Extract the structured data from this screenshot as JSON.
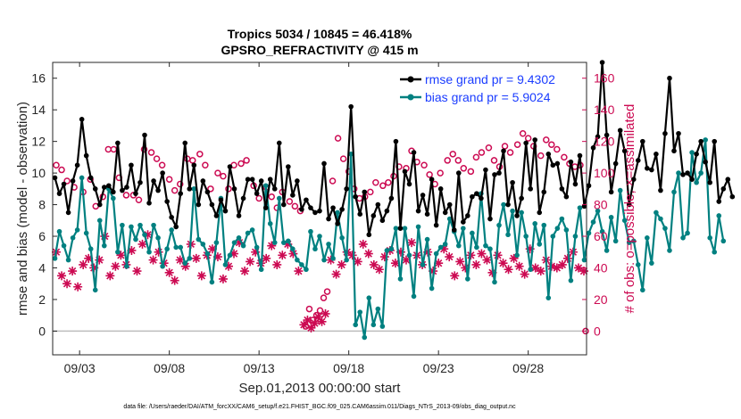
{
  "chart_data": {
    "type": "line",
    "title_line1": "Tropics 5034 / 10845 = 46.418%",
    "title_line2": "GPSRO_REFRACTIVITY @ 415 m",
    "xlabel": "Sep.01,2013 00:00:00 start",
    "ylabel": "rmse and bias (model - observation)",
    "ylabel_right": "# of obs: o=possible; ×=assimilated",
    "footer": "data file: /Users/raeder/DAI/ATM_forcXX/CAM6_setup/f.e21.FHIST_BGC.f09_025.CAM6assim.011/Diags_NTrS_2013-09/obs_diag_output.nc",
    "x_ticks": [
      {
        "day": 3,
        "label": "09/03"
      },
      {
        "day": 8,
        "label": "09/08"
      },
      {
        "day": 13,
        "label": "09/13"
      },
      {
        "day": 18,
        "label": "09/18"
      },
      {
        "day": 23,
        "label": "09/23"
      },
      {
        "day": 28,
        "label": "09/28"
      }
    ],
    "xlim": [
      1.5,
      31.25
    ],
    "ylim": [
      -1.5,
      17
    ],
    "yticks": [
      0,
      2,
      4,
      6,
      8,
      10,
      12,
      14,
      16
    ],
    "ylim_right": [
      -15,
      170
    ],
    "yticks_right": [
      0,
      20,
      40,
      60,
      80,
      100,
      120,
      140,
      160
    ],
    "x_start": 1.625,
    "x_step": 0.25,
    "colors": {
      "rmse": "#000000",
      "bias": "#008080",
      "obs": "#cc0a52",
      "zero": "#bdbdbd"
    },
    "series": [
      {
        "name": "rmse grand pr = 9.4302",
        "color": "#000000",
        "values": [
          9.7,
          8.7,
          9.3,
          7.5,
          9.5,
          10.5,
          13.4,
          11.1,
          9.7,
          9.0,
          8.0,
          9.1,
          9.2,
          8.8,
          11.9,
          8.9,
          9.1,
          10.5,
          8.7,
          9.4,
          12.4,
          8.1,
          9.5,
          8.9,
          10.0,
          8.2,
          7.2,
          6.6,
          8.7,
          11.9,
          9.0,
          10.5,
          8.0,
          9.5,
          8.8,
          8.0,
          7.3,
          8.3,
          7.6,
          10.4,
          9.0,
          7.3,
          8.4,
          9.6,
          9.6,
          8.7,
          9.5,
          7.8,
          9.6,
          9.0,
          11.9,
          8.0,
          10.4,
          8.6,
          9.5,
          7.7,
          8.3,
          7.8,
          7.5,
          7.6,
          10.6,
          7.1,
          7.8,
          6.8,
          7.7,
          9.0,
          14.2,
          8.5,
          7.4,
          8.8,
          6.1,
          7.3,
          8.0,
          7.0,
          7.6,
          8.4,
          12.0,
          6.5,
          10.1,
          9.3,
          11.3,
          7.6,
          8.6,
          7.4,
          9.6,
          6.7,
          9.0,
          7.5,
          8.0,
          6.4,
          10.0,
          6.9,
          7.3,
          8.5,
          8.7,
          8.4,
          10.2,
          7.1,
          9.9,
          10.0,
          11.4,
          8.0,
          9.4,
          7.3,
          8.4,
          11.9,
          9.0,
          12.1,
          7.5,
          8.8,
          11.2,
          10.5,
          10.6,
          9.0,
          8.5,
          10.7,
          9.3,
          11.1,
          7.9,
          9.2,
          11.6,
          12.3,
          17.0,
          12.4,
          8.8,
          10.6,
          12.7,
          11.4,
          8.0,
          9.6,
          10.8,
          12.0,
          10.3,
          10.2,
          11.2,
          8.9,
          12.5,
          16.0,
          11.4,
          12.5,
          9.9,
          10.0,
          9.6,
          11.2,
          12.0,
          10.7,
          9.4,
          12.0,
          8.2,
          9.0,
          9.6,
          8.5
        ]
      },
      {
        "name": "bias grand pr = 5.9024",
        "color": "#008080",
        "values": [
          4.6,
          6.3,
          5.4,
          4.5,
          5.9,
          6.4,
          9.7,
          6.2,
          5.2,
          2.6,
          7.0,
          5.4,
          9.0,
          8.4,
          5.0,
          6.7,
          4.1,
          6.6,
          5.8,
          6.7,
          6.1,
          5.0,
          6.7,
          5.9,
          4.1,
          5.2,
          6.4,
          5.3,
          5.3,
          4.3,
          4.6,
          9.0,
          5.8,
          5.5,
          4.9,
          3.1,
          5.6,
          8.4,
          4.2,
          4.8,
          5.6,
          5.9,
          5.4,
          6.2,
          6.4,
          5.3,
          3.9,
          9.2,
          6.8,
          5.6,
          8.4,
          5.6,
          5.7,
          5.2,
          4.5,
          4.2,
          3.9,
          6.3,
          5.2,
          6.0,
          4.5,
          5.5,
          4.6,
          7.5,
          5.9,
          4.5,
          11.2,
          0.4,
          1.2,
          -0.4,
          2.1,
          0.4,
          1.4,
          0.3,
          5.1,
          5.2,
          6.5,
          3.3,
          6.5,
          4.8,
          2.2,
          6.6,
          4.2,
          5.8,
          2.7,
          4.9,
          5.3,
          5.5,
          7.1,
          6.3,
          5.4,
          6.5,
          3.3,
          6.2,
          5.3,
          8.7,
          5.4,
          5.2,
          3.1,
          6.7,
          8.0,
          6.1,
          7.6,
          4.8,
          7.5,
          6.0,
          3.9,
          6.8,
          5.5,
          6.7,
          2.1,
          6.0,
          6.5,
          7.1,
          6.4,
          3.2,
          6.0,
          7.8,
          4.5,
          6.2,
          6.9,
          7.6,
          6.3,
          5.1,
          7.2,
          5.7,
          8.9,
          7.0,
          5.6,
          5.7,
          4.2,
          2.6,
          5.9,
          4.3,
          7.5,
          7.1,
          6.5,
          5.1,
          8.8,
          10.0,
          5.9,
          6.2,
          11.3,
          9.4,
          10.0,
          12.1,
          5.9,
          5.0,
          7.3,
          5.7
        ]
      }
    ],
    "obs_possible": [
      {
        "day": 1.7,
        "value": 105
      },
      {
        "day": 2.0,
        "value": 102
      },
      {
        "day": 2.3,
        "value": 95
      },
      {
        "day": 2.7,
        "value": 91
      },
      {
        "day": 3.2,
        "value": 88
      },
      {
        "day": 3.6,
        "value": 96
      },
      {
        "day": 3.9,
        "value": 79
      },
      {
        "day": 4.3,
        "value": 85
      },
      {
        "day": 4.6,
        "value": 115
      },
      {
        "day": 4.9,
        "value": 115
      },
      {
        "day": 5.2,
        "value": 97
      },
      {
        "day": 5.6,
        "value": 86
      },
      {
        "day": 6.0,
        "value": 86
      },
      {
        "day": 6.3,
        "value": 83
      },
      {
        "day": 6.6,
        "value": 115
      },
      {
        "day": 7.0,
        "value": 113
      },
      {
        "day": 7.3,
        "value": 109
      },
      {
        "day": 7.6,
        "value": 105
      },
      {
        "day": 8.0,
        "value": 96
      },
      {
        "day": 8.3,
        "value": 89
      },
      {
        "day": 8.6,
        "value": 93
      },
      {
        "day": 9.0,
        "value": 109
      },
      {
        "day": 9.3,
        "value": 108
      },
      {
        "day": 9.7,
        "value": 112
      },
      {
        "day": 10.0,
        "value": 105
      },
      {
        "day": 10.3,
        "value": 90
      },
      {
        "day": 10.7,
        "value": 100
      },
      {
        "day": 11.0,
        "value": 98
      },
      {
        "day": 11.3,
        "value": 90
      },
      {
        "day": 11.6,
        "value": 105
      },
      {
        "day": 12.0,
        "value": 106
      },
      {
        "day": 12.3,
        "value": 108
      },
      {
        "day": 12.7,
        "value": 92
      },
      {
        "day": 13.0,
        "value": 84
      },
      {
        "day": 13.4,
        "value": 91
      },
      {
        "day": 13.7,
        "value": 85
      },
      {
        "day": 14.0,
        "value": 78
      },
      {
        "day": 14.3,
        "value": 88
      },
      {
        "day": 14.7,
        "value": 82
      },
      {
        "day": 15.0,
        "value": 79
      },
      {
        "day": 15.3,
        "value": 76
      },
      {
        "day": 15.6,
        "value": 3
      },
      {
        "day": 15.8,
        "value": 14
      },
      {
        "day": 16.0,
        "value": 7
      },
      {
        "day": 16.2,
        "value": 10
      },
      {
        "day": 16.4,
        "value": 13
      },
      {
        "day": 16.6,
        "value": 21
      },
      {
        "day": 16.8,
        "value": 25
      },
      {
        "day": 17.1,
        "value": 95
      },
      {
        "day": 17.4,
        "value": 122
      },
      {
        "day": 17.7,
        "value": 109
      },
      {
        "day": 18.0,
        "value": 101
      },
      {
        "day": 18.3,
        "value": 90
      },
      {
        "day": 18.6,
        "value": 84
      },
      {
        "day": 18.9,
        "value": 85
      },
      {
        "day": 19.2,
        "value": 88
      },
      {
        "day": 19.5,
        "value": 94
      },
      {
        "day": 19.9,
        "value": 92
      },
      {
        "day": 20.2,
        "value": 94
      },
      {
        "day": 20.5,
        "value": 98
      },
      {
        "day": 20.8,
        "value": 104
      },
      {
        "day": 21.2,
        "value": 103
      },
      {
        "day": 21.5,
        "value": 114
      },
      {
        "day": 21.8,
        "value": 107
      },
      {
        "day": 22.2,
        "value": 105
      },
      {
        "day": 22.5,
        "value": 99
      },
      {
        "day": 22.8,
        "value": 93
      },
      {
        "day": 23.1,
        "value": 100
      },
      {
        "day": 23.5,
        "value": 108
      },
      {
        "day": 23.8,
        "value": 112
      },
      {
        "day": 24.1,
        "value": 108
      },
      {
        "day": 24.4,
        "value": 103
      },
      {
        "day": 24.8,
        "value": 101
      },
      {
        "day": 25.1,
        "value": 110
      },
      {
        "day": 25.4,
        "value": 113
      },
      {
        "day": 25.8,
        "value": 116
      },
      {
        "day": 26.1,
        "value": 108
      },
      {
        "day": 26.4,
        "value": 104
      },
      {
        "day": 26.7,
        "value": 117
      },
      {
        "day": 27.0,
        "value": 113
      },
      {
        "day": 27.4,
        "value": 118
      },
      {
        "day": 27.7,
        "value": 125
      },
      {
        "day": 28.0,
        "value": 122
      },
      {
        "day": 28.3,
        "value": 117
      },
      {
        "day": 28.7,
        "value": 111
      },
      {
        "day": 29.0,
        "value": 121
      },
      {
        "day": 29.3,
        "value": 118
      },
      {
        "day": 29.6,
        "value": 115
      },
      {
        "day": 30.0,
        "value": 110
      },
      {
        "day": 30.3,
        "value": 106
      },
      {
        "day": 30.6,
        "value": 104
      },
      {
        "day": 30.9,
        "value": 105
      },
      {
        "day": 31.2,
        "value": 0
      }
    ],
    "obs_assimilated": [
      {
        "day": 1.7,
        "value": 50
      },
      {
        "day": 2.0,
        "value": 35
      },
      {
        "day": 2.3,
        "value": 30
      },
      {
        "day": 2.6,
        "value": 38
      },
      {
        "day": 2.9,
        "value": 28
      },
      {
        "day": 3.2,
        "value": 42
      },
      {
        "day": 3.5,
        "value": 46
      },
      {
        "day": 3.8,
        "value": 40
      },
      {
        "day": 4.1,
        "value": 45
      },
      {
        "day": 4.4,
        "value": 60
      },
      {
        "day": 4.7,
        "value": 35
      },
      {
        "day": 5.0,
        "value": 41
      },
      {
        "day": 5.3,
        "value": 48
      },
      {
        "day": 5.6,
        "value": 42
      },
      {
        "day": 5.9,
        "value": 51
      },
      {
        "day": 6.2,
        "value": 38
      },
      {
        "day": 6.5,
        "value": 55
      },
      {
        "day": 6.8,
        "value": 61
      },
      {
        "day": 7.1,
        "value": 45
      },
      {
        "day": 7.4,
        "value": 50
      },
      {
        "day": 7.7,
        "value": 43
      },
      {
        "day": 8.0,
        "value": 37
      },
      {
        "day": 8.3,
        "value": 32
      },
      {
        "day": 8.6,
        "value": 45
      },
      {
        "day": 8.9,
        "value": 41
      },
      {
        "day": 9.2,
        "value": 55
      },
      {
        "day": 9.5,
        "value": 46
      },
      {
        "day": 9.8,
        "value": 35
      },
      {
        "day": 10.1,
        "value": 48
      },
      {
        "day": 10.4,
        "value": 52
      },
      {
        "day": 10.7,
        "value": 47
      },
      {
        "day": 11.0,
        "value": 33
      },
      {
        "day": 11.3,
        "value": 41
      },
      {
        "day": 11.6,
        "value": 49
      },
      {
        "day": 11.9,
        "value": 56
      },
      {
        "day": 12.2,
        "value": 38
      },
      {
        "day": 12.5,
        "value": 44
      },
      {
        "day": 12.8,
        "value": 50
      },
      {
        "day": 13.1,
        "value": 43
      },
      {
        "day": 13.4,
        "value": 46
      },
      {
        "day": 13.7,
        "value": 54
      },
      {
        "day": 14.0,
        "value": 42
      },
      {
        "day": 14.3,
        "value": 48
      },
      {
        "day": 14.6,
        "value": 55
      },
      {
        "day": 14.9,
        "value": 49
      },
      {
        "day": 15.2,
        "value": 38
      },
      {
        "day": 15.5,
        "value": 4
      },
      {
        "day": 15.7,
        "value": 7
      },
      {
        "day": 15.9,
        "value": 2
      },
      {
        "day": 16.1,
        "value": 5
      },
      {
        "day": 16.3,
        "value": 9
      },
      {
        "day": 16.5,
        "value": 6
      },
      {
        "day": 16.7,
        "value": 11
      },
      {
        "day": 17.0,
        "value": 45
      },
      {
        "day": 17.3,
        "value": 36
      },
      {
        "day": 17.6,
        "value": 42
      },
      {
        "day": 17.9,
        "value": 50
      },
      {
        "day": 18.2,
        "value": 48
      },
      {
        "day": 18.5,
        "value": 44
      },
      {
        "day": 18.8,
        "value": 55
      },
      {
        "day": 19.1,
        "value": 49
      },
      {
        "day": 19.4,
        "value": 42
      },
      {
        "day": 19.7,
        "value": 39
      },
      {
        "day": 20.0,
        "value": 47
      },
      {
        "day": 20.3,
        "value": 51
      },
      {
        "day": 20.6,
        "value": 43
      },
      {
        "day": 20.9,
        "value": 50
      },
      {
        "day": 21.2,
        "value": 45
      },
      {
        "day": 21.5,
        "value": 56
      },
      {
        "day": 21.8,
        "value": 48
      },
      {
        "day": 22.1,
        "value": 42
      },
      {
        "day": 22.4,
        "value": 50
      },
      {
        "day": 22.7,
        "value": 38
      },
      {
        "day": 23.0,
        "value": 43
      },
      {
        "day": 23.3,
        "value": 52
      },
      {
        "day": 23.6,
        "value": 47
      },
      {
        "day": 23.9,
        "value": 35
      },
      {
        "day": 24.2,
        "value": 44
      },
      {
        "day": 24.5,
        "value": 40
      },
      {
        "day": 24.8,
        "value": 48
      },
      {
        "day": 25.1,
        "value": 42
      },
      {
        "day": 25.4,
        "value": 49
      },
      {
        "day": 25.7,
        "value": 45
      },
      {
        "day": 26.0,
        "value": 37
      },
      {
        "day": 26.3,
        "value": 48
      },
      {
        "day": 26.6,
        "value": 43
      },
      {
        "day": 26.9,
        "value": 39
      },
      {
        "day": 27.2,
        "value": 46
      },
      {
        "day": 27.5,
        "value": 41
      },
      {
        "day": 27.8,
        "value": 36
      },
      {
        "day": 28.1,
        "value": 52
      },
      {
        "day": 28.4,
        "value": 40
      },
      {
        "day": 28.7,
        "value": 38
      },
      {
        "day": 29.0,
        "value": 45
      },
      {
        "day": 29.3,
        "value": 41
      },
      {
        "day": 29.6,
        "value": 40
      },
      {
        "day": 29.9,
        "value": 42
      },
      {
        "day": 30.2,
        "value": 46
      },
      {
        "day": 30.5,
        "value": 50
      },
      {
        "day": 30.8,
        "value": 40
      },
      {
        "day": 31.1,
        "value": 38
      }
    ]
  }
}
